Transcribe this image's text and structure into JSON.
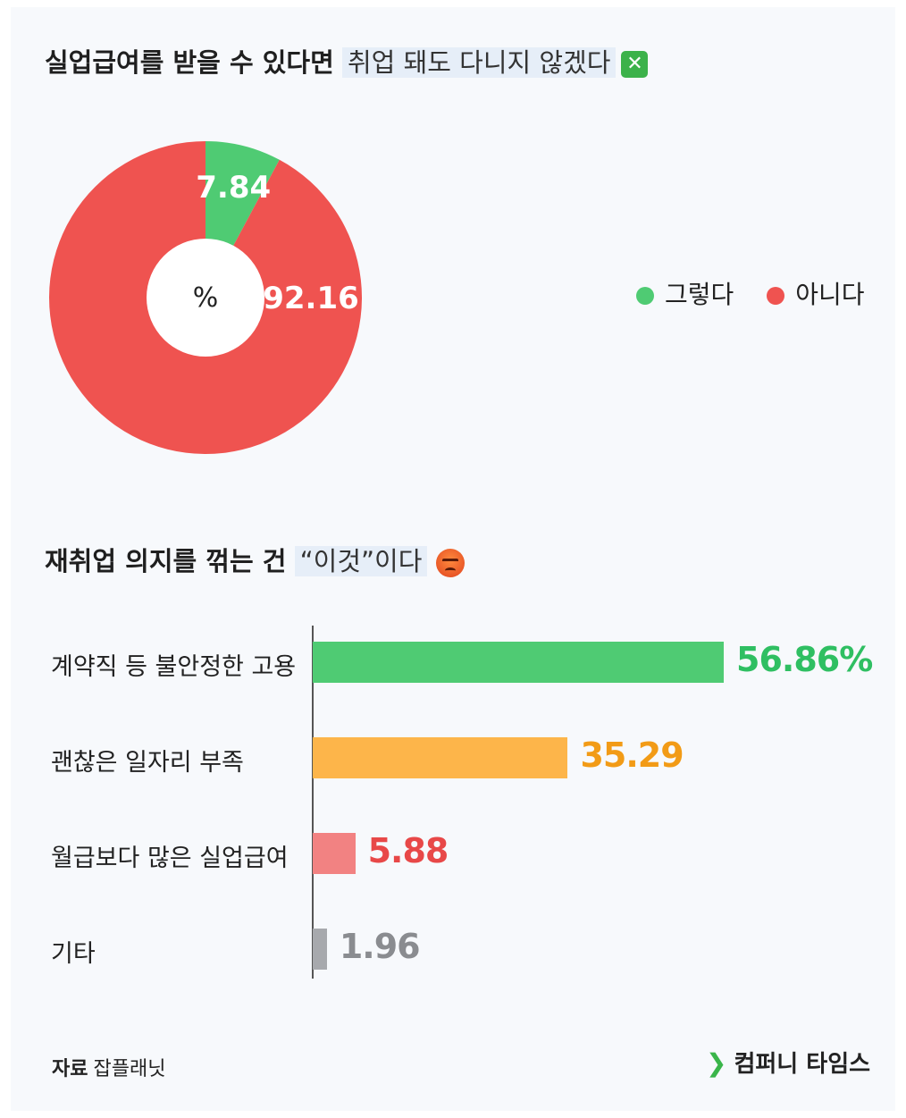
{
  "title1": {
    "bold": "실업급여를 받을 수 있다면",
    "highlight": "취업 돼도 다니지 않겠다",
    "emoji": "cross-mark-icon"
  },
  "title2": {
    "bold": "재취업 의지를 꺾는 건",
    "highlight": "“이것”이다",
    "emoji": "angry-face-icon"
  },
  "chart_data": [
    {
      "type": "pie",
      "donut": true,
      "center_label": "%",
      "slices": [
        {
          "label": "그렇다",
          "value": 7.84,
          "display": "7.84",
          "color": "#4fcb73"
        },
        {
          "label": "아니다",
          "value": 92.16,
          "display": "92.16",
          "color": "#ef5350"
        }
      ],
      "legend": "right"
    },
    {
      "type": "bar",
      "orientation": "horizontal",
      "categories": [
        "계약직 등 불안정한 고용",
        "괜찮은 일자리 부족",
        "월급보다 많은 실업급여",
        "기타"
      ],
      "values": [
        56.86,
        35.29,
        5.88,
        1.96
      ],
      "display": [
        "56.86%",
        "35.29",
        "5.88",
        "1.96"
      ],
      "colors": [
        "#4fcb73",
        "#fdb54a",
        "#f28282",
        "#a7a9ad"
      ],
      "value_colors": [
        "#2fbf62",
        "#f29b16",
        "#e84848",
        "#8a8c90"
      ]
    }
  ],
  "footer": {
    "source_label": "자료",
    "source_value": "잡플래닛",
    "brand": "컴퍼니 타임스"
  }
}
